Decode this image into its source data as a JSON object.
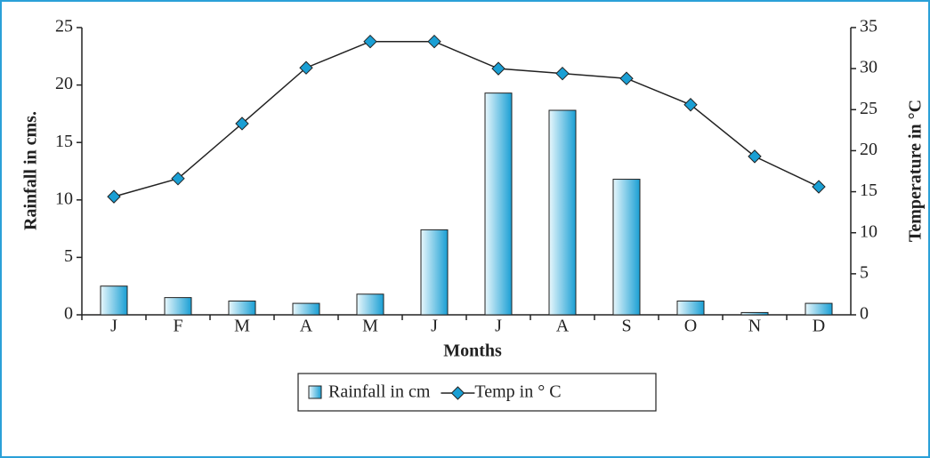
{
  "chart_data": {
    "type": "combo",
    "categories": [
      "J",
      "F",
      "M",
      "A",
      "M",
      "J",
      "J",
      "A",
      "S",
      "O",
      "N",
      "D"
    ],
    "series": [
      {
        "name": "Rainfall in cm",
        "type": "bar",
        "color": "#1a9fd4",
        "values": [
          2.5,
          1.5,
          1.2,
          1.0,
          1.8,
          7.4,
          19.3,
          17.8,
          11.8,
          1.2,
          0.2,
          1.0
        ]
      },
      {
        "name": "Temp in ° C",
        "type": "line",
        "axis": "y2",
        "color": "#222222",
        "marker_color": "#1a9fd4",
        "values": [
          14.4,
          16.6,
          23.3,
          30.1,
          33.3,
          33.3,
          30.0,
          29.4,
          28.8,
          25.6,
          19.3,
          15.6
        ]
      }
    ],
    "xlabel": "Months",
    "ylabel": "Rainfall in cms.",
    "y2label": "Temperature in °C",
    "ylim": [
      0,
      25
    ],
    "yticks": [
      0,
      5,
      10,
      15,
      20,
      25
    ],
    "y2lim": [
      0,
      35
    ],
    "y2ticks": [
      0,
      5,
      10,
      15,
      20,
      25,
      30,
      35
    ],
    "legend": "bottom"
  }
}
